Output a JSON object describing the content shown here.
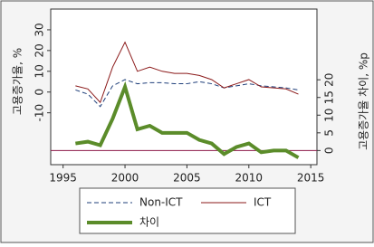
{
  "chart_data": {
    "type": "line",
    "ylabel": "고용증가율, %",
    "y2label": "고용증가율 차이, %p",
    "x": [
      1996,
      1997,
      1998,
      1999,
      2000,
      2001,
      2002,
      2003,
      2004,
      2005,
      2006,
      2007,
      2008,
      2009,
      2010,
      2011,
      2012,
      2013,
      2014
    ],
    "series": [
      {
        "name": "Non-ICT",
        "color": "#1f3f7a",
        "dashed": true,
        "width": 1,
        "values": [
          1,
          -1,
          -7,
          3,
          6,
          4,
          4.5,
          4.5,
          4,
          4,
          5,
          4,
          2,
          3,
          4,
          3,
          2.5,
          2,
          1
        ]
      },
      {
        "name": "ICT",
        "color": "#8b1a1a",
        "dashed": false,
        "width": 1,
        "values": [
          3,
          1.5,
          -5,
          12,
          24,
          10,
          12,
          10,
          9,
          9,
          8,
          6,
          2,
          4,
          6,
          2.5,
          2,
          1.5,
          -1
        ]
      },
      {
        "name": "차이",
        "color": "#5b8c2a",
        "dashed": false,
        "width": 4,
        "axis": "y2",
        "values": [
          2,
          2.5,
          1.5,
          9,
          18,
          6,
          7,
          5,
          5,
          5,
          3,
          2,
          -1,
          1,
          2,
          -0.5,
          0,
          0,
          -2
        ]
      }
    ],
    "xlim": [
      1994,
      2015.5
    ],
    "xticks": [
      1995,
      2000,
      2005,
      2010,
      2015
    ],
    "ylim": [
      -35,
      40
    ],
    "yticks": [
      -10,
      0,
      10,
      20,
      30
    ],
    "y2lim": [
      -4,
      40
    ],
    "y2ticks": [
      0,
      5,
      10,
      15,
      20
    ],
    "y2_zero_line_color": "#8b1a4a",
    "legend": "bottom"
  }
}
